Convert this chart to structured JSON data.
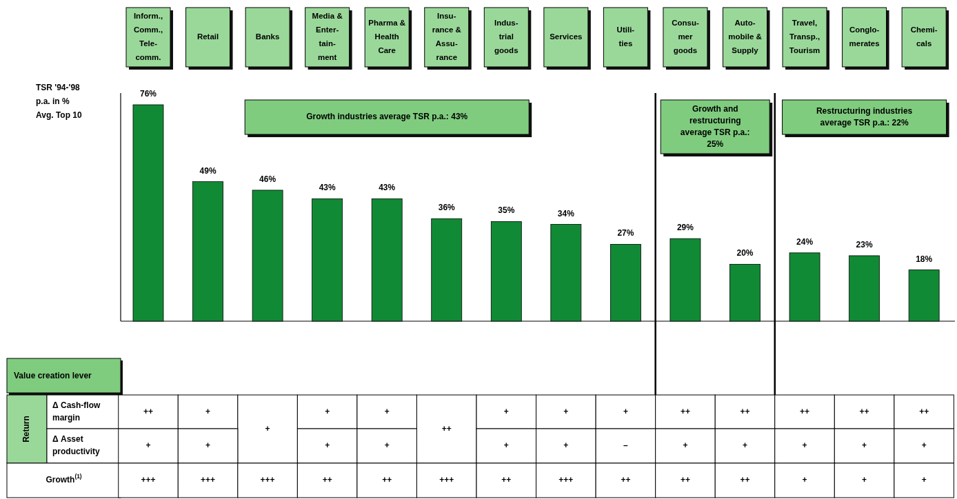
{
  "chart_data": [
    {
      "type": "bar",
      "ylabel": "TSR '94-'98 p.a. in % Avg. Top 10",
      "categories": [
        "Inform., Comm., Tele-comm.",
        "Retail",
        "Banks",
        "Media & Enter-tain-ment",
        "Pharma & Health Care",
        "Insu-rance & Assu-rance",
        "Indus-trial goods",
        "Services",
        "Utili-ties",
        "Consu-mer goods",
        "Auto-mobile & Supply",
        "Travel, Transp., Tourism",
        "Conglo-merates",
        "Chemi-cals"
      ],
      "values": [
        76,
        49,
        46,
        43,
        43,
        36,
        35,
        34,
        27,
        29,
        20,
        24,
        23,
        18
      ],
      "value_labels": [
        "76%",
        "49%",
        "46%",
        "43%",
        "43%",
        "36%",
        "35%",
        "34%",
        "27%",
        "29%",
        "20%",
        "24%",
        "23%",
        "18%"
      ],
      "color": "#118a35",
      "annotations": [
        "Growth industries average TSR p.a.: 43%",
        "Growth and restructuring average TSR p.a.: 25%",
        "Restructuring industries average TSR p.a.: 22%"
      ]
    },
    {
      "type": "other",
      "title": "Value creation lever",
      "y_categories": [
        "Δ Cash-flow margin",
        "Δ Asset productivity",
        "Growth$^{(1)}$"
      ],
      "annotations": [
        "Return"
      ],
      "cell_labels": [
        [
          "++",
          "+",
          "+",
          "+",
          "+",
          "++",
          "+",
          "+",
          "+",
          "++",
          "++",
          "++",
          "++",
          "++"
        ],
        [
          "+",
          "+",
          null,
          "+",
          "+",
          null,
          "+",
          "+",
          "–",
          "+",
          "+",
          "+",
          "+",
          "+"
        ],
        [
          "+++",
          "+++",
          "+++",
          "++",
          "++",
          "+++",
          "++",
          "+++",
          "++",
          "++",
          "++",
          "+",
          "+",
          "+"
        ]
      ]
    }
  ]
}
